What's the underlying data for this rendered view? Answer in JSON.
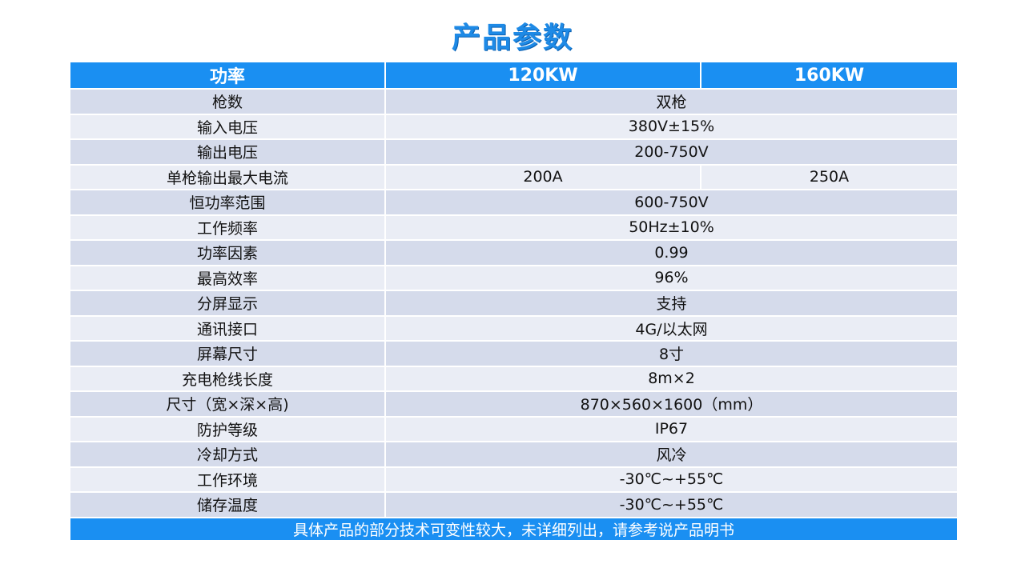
{
  "title": "产品参数",
  "header": {
    "col1": "功率",
    "col2": "120KW",
    "col3": "160KW"
  },
  "rows": [
    {
      "label": "枪数",
      "value": "双枪"
    },
    {
      "label": "输入电压",
      "value": "380V±15%"
    },
    {
      "label": "输出电压",
      "value": "200-750V"
    },
    {
      "label": "单枪输出最大电流",
      "value_120": "200A",
      "value_160": "250A"
    },
    {
      "label": "恒功率范围",
      "value": "600-750V"
    },
    {
      "label": "工作频率",
      "value": "50Hz±10%"
    },
    {
      "label": "功率因素",
      "value": "0.99"
    },
    {
      "label": "最高效率",
      "value": "96%"
    },
    {
      "label": "分屏显示",
      "value": "支持"
    },
    {
      "label": "通讯接口",
      "value": "4G/以太网"
    },
    {
      "label": "屏幕尺寸",
      "value": "8寸"
    },
    {
      "label": "充电枪线长度",
      "value": "8m×2"
    },
    {
      "label": "尺寸（宽×深×高)",
      "value": "870×560×1600（mm）"
    },
    {
      "label": "防护等级",
      "value": "IP67"
    },
    {
      "label": "冷却方式",
      "value": "风冷"
    },
    {
      "label": "工作环境",
      "value": "-30℃~+55℃"
    },
    {
      "label": "储存温度",
      "value": "-30℃~+55℃"
    }
  ],
  "footer": "具体产品的部分技术可变性较大，未详细列出，请参考说产品明书",
  "colors": {
    "accent": "#1a8ff2",
    "row_dark": "#d5dbeb",
    "row_light": "#eaedf5"
  }
}
